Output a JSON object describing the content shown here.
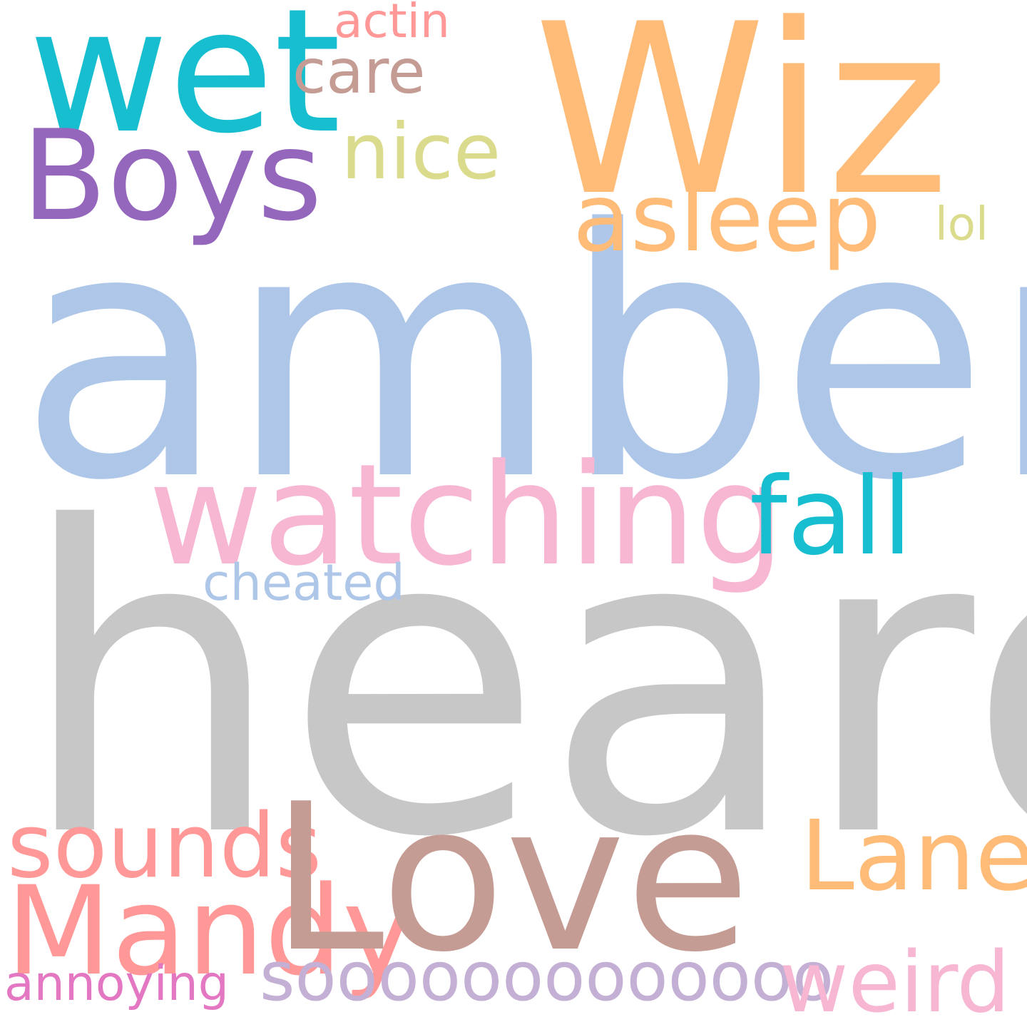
{
  "word_cloud": {
    "background": "#ffffff",
    "words": {
      "amber": {
        "text": "amber",
        "color": "#aec7e8"
      },
      "heard": {
        "text": "heard",
        "color": "#c7c7c7"
      },
      "wiz": {
        "text": "Wiz",
        "color": "#ffbb78"
      },
      "wet": {
        "text": "wet",
        "color": "#17becf"
      },
      "boys": {
        "text": "Boys",
        "color": "#9467bd"
      },
      "care": {
        "text": "care",
        "color": "#c49c94"
      },
      "actin": {
        "text": "actin",
        "color": "#ff9896"
      },
      "nice": {
        "text": "nice",
        "color": "#dbdb8d"
      },
      "asleep": {
        "text": "asleep",
        "color": "#ffbb78"
      },
      "lol": {
        "text": "lol",
        "color": "#dbdb8d"
      },
      "watching": {
        "text": "watching",
        "color": "#f7b6d2"
      },
      "fall": {
        "text": "fall",
        "color": "#17becf"
      },
      "cheated": {
        "text": "cheated",
        "color": "#aec7e8"
      },
      "sounds": {
        "text": "sounds",
        "color": "#ff9896"
      },
      "mandy": {
        "text": "Mandy",
        "color": "#ff9896"
      },
      "love": {
        "text": "Love",
        "color": "#c49c94"
      },
      "lane": {
        "text": "Lane",
        "color": "#ffbb78"
      },
      "annoying": {
        "text": "annoying",
        "color": "#e377c2"
      },
      "soooo": {
        "text": "sooooooooooooo",
        "color": "#c5b0d5"
      },
      "weird": {
        "text": "weird",
        "color": "#f7b6d2"
      }
    }
  }
}
